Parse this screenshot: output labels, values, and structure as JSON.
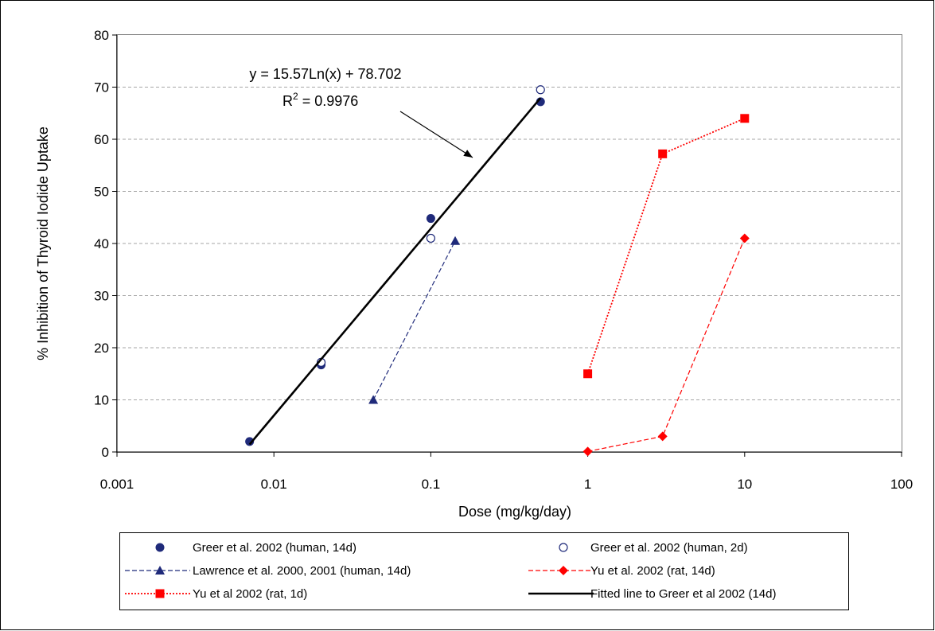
{
  "chart_data": {
    "type": "scatter",
    "title": "",
    "xlabel": "Dose (mg/kg/day)",
    "ylabel": "% Inhibition of Thyroid Iodide Uptake",
    "x_scale": "log",
    "xlim": [
      0.001,
      100
    ],
    "ylim": [
      0,
      80
    ],
    "x_ticks": [
      0.001,
      0.01,
      0.1,
      1,
      10,
      100
    ],
    "x_tick_labels": [
      "0.001",
      "0.01",
      "0.1",
      "1",
      "10",
      "100"
    ],
    "y_ticks": [
      0,
      10,
      20,
      30,
      40,
      50,
      60,
      70,
      80
    ],
    "y_tick_labels": [
      "0",
      "10",
      "20",
      "30",
      "40",
      "50",
      "60",
      "70",
      "80"
    ],
    "grid": "horizontal dashed",
    "legend_position": "bottom",
    "series": [
      {
        "name": "Greer et al. 2002 (human, 14d)",
        "marker": "filled-circle",
        "line": "none",
        "color": "#1f2a7a",
        "x": [
          0.007,
          0.02,
          0.1,
          0.5
        ],
        "y": [
          2,
          16.7,
          44.8,
          67.2
        ]
      },
      {
        "name": "Greer et al. 2002 (human, 2d)",
        "marker": "open-circle",
        "line": "none",
        "color": "#1f2a7a",
        "x": [
          0.02,
          0.1,
          0.5
        ],
        "y": [
          17.2,
          41,
          69.5
        ]
      },
      {
        "name": "Lawrence et al. 2000, 2001 (human, 14d)",
        "marker": "triangle",
        "line": "dashed",
        "color": "#1f2a7a",
        "x": [
          0.043,
          0.143
        ],
        "y": [
          10,
          40.5
        ]
      },
      {
        "name": "Yu et al. 2002 (rat, 14d)",
        "marker": "diamond",
        "line": "dashed",
        "color": "#ff0000",
        "x": [
          1,
          3,
          10
        ],
        "y": [
          0.1,
          3,
          41
        ]
      },
      {
        "name": "Yu et al 2002 (rat, 1d)",
        "marker": "square",
        "line": "dotted",
        "color": "#ff0000",
        "x": [
          1,
          3,
          10
        ],
        "y": [
          15,
          57.2,
          64
        ]
      },
      {
        "name": "Fitted line to Greer et al 2002 (14d)",
        "marker": "none",
        "line": "solid",
        "color": "#000000",
        "fit": {
          "slope": 15.57,
          "intercept": 78.702,
          "x_range": [
            0.007,
            0.5
          ]
        }
      }
    ],
    "annotations": {
      "equation": "y = 15.57Ln(x) + 78.702",
      "r2_prefix": "R",
      "r2_superscript": "2",
      "r2_suffix": " = 0.9976",
      "arrow_target": {
        "x": 0.19,
        "y": 56
      }
    }
  }
}
